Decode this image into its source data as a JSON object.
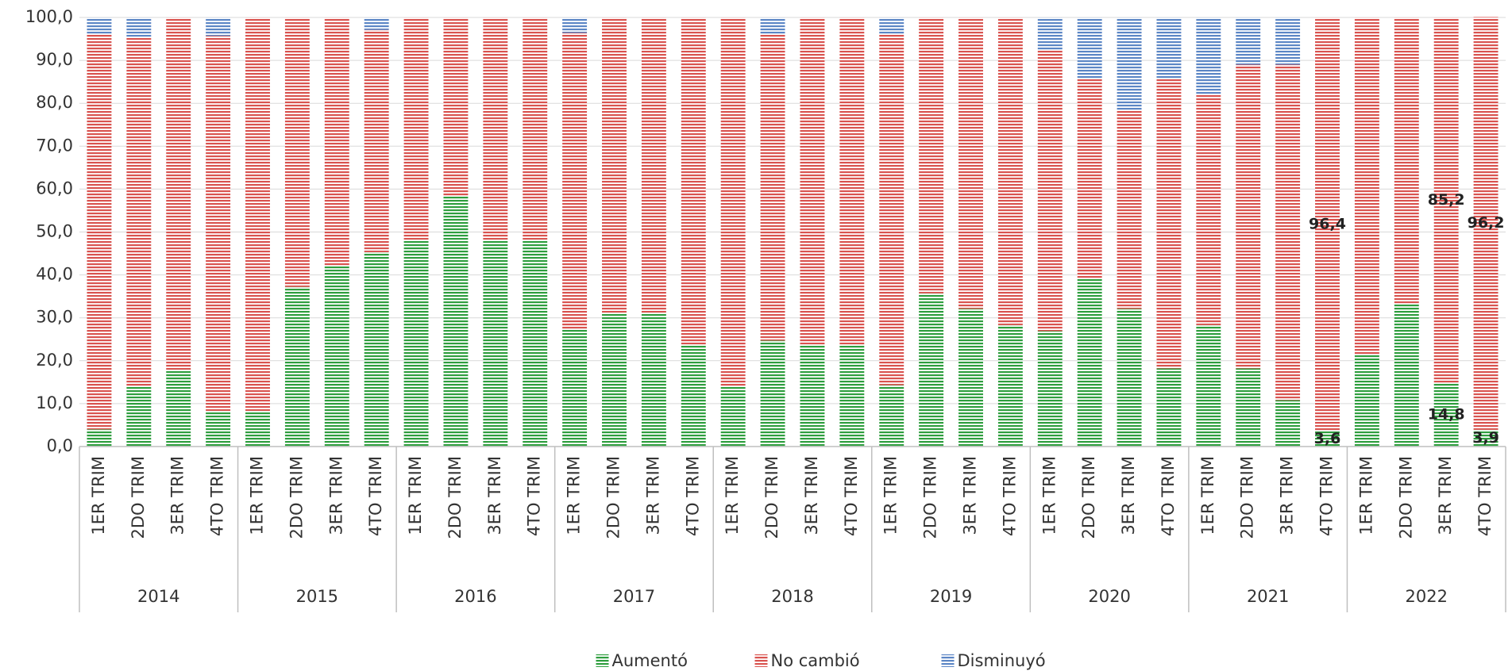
{
  "chart_data": {
    "type": "stacked_bar",
    "categories": [
      "1ER TRIM",
      "2DO TRIM",
      "3ER TRIM",
      "4TO TRIM",
      "1ER TRIM",
      "2DO TRIM",
      "3ER TRIM",
      "4TO TRIM",
      "1ER TRIM",
      "2DO TRIM",
      "3ER TRIM",
      "4TO TRIM",
      "1ER TRIM",
      "2DO TRIM",
      "3ER TRIM",
      "4TO TRIM",
      "1ER TRIM",
      "2DO TRIM",
      "3ER TRIM",
      "4TO TRIM",
      "1ER TRIM",
      "2DO TRIM",
      "3ER TRIM",
      "4TO TRIM",
      "1ER TRIM",
      "2DO TRIM",
      "3ER TRIM",
      "4TO TRIM",
      "1ER TRIM",
      "2DO TRIM",
      "3ER TRIM",
      "4TO TRIM",
      "1ER TRIM",
      "2DO TRIM",
      "3ER TRIM",
      "4TO TRIM"
    ],
    "groups": [
      "2014",
      "2015",
      "2016",
      "2017",
      "2018",
      "2019",
      "2020",
      "2021",
      "2022"
    ],
    "series": [
      {
        "name": "Aumentó",
        "color": "#2e9e3e",
        "values": [
          4.0,
          13.9,
          17.9,
          8.3,
          8.3,
          37.2,
          42.2,
          45.3,
          48.2,
          58.5,
          48.2,
          48.2,
          27.4,
          31.2,
          31.2,
          23.8,
          13.9,
          24.7,
          23.8,
          23.8,
          14.3,
          35.7,
          32.1,
          28.3,
          26.9,
          39.2,
          32.1,
          18.2,
          28.3,
          18.2,
          10.8,
          3.6,
          21.3,
          33.2,
          14.8,
          3.9
        ],
        "value_labels": [
          null,
          null,
          null,
          null,
          null,
          null,
          null,
          null,
          null,
          null,
          null,
          null,
          null,
          null,
          null,
          null,
          null,
          null,
          null,
          null,
          null,
          null,
          null,
          null,
          null,
          null,
          null,
          null,
          null,
          null,
          null,
          "3,6",
          null,
          null,
          "14,8",
          "3,9"
        ]
      },
      {
        "name": "No cambió",
        "color": "#d9534f",
        "values": [
          92.2,
          81.6,
          82.1,
          87.4,
          91.7,
          62.8,
          57.8,
          51.8,
          51.8,
          41.5,
          51.8,
          51.8,
          69.0,
          68.8,
          68.8,
          76.2,
          86.1,
          71.5,
          76.2,
          76.2,
          81.9,
          64.3,
          67.9,
          71.7,
          65.5,
          46.5,
          46.2,
          67.5,
          53.8,
          70.8,
          78.2,
          96.4,
          78.7,
          66.8,
          85.2,
          96.2
        ],
        "value_labels": [
          null,
          null,
          null,
          null,
          null,
          null,
          null,
          null,
          null,
          null,
          null,
          null,
          null,
          null,
          null,
          null,
          null,
          null,
          null,
          null,
          null,
          null,
          null,
          null,
          null,
          null,
          null,
          null,
          null,
          null,
          null,
          "96,4",
          null,
          null,
          "85,2",
          "96,2"
        ]
      },
      {
        "name": "Disminuyó",
        "color": "#5b86c5",
        "values": [
          3.8,
          4.5,
          0,
          4.3,
          0,
          0,
          0,
          2.9,
          0,
          0,
          0,
          0,
          3.6,
          0,
          0,
          0,
          0,
          3.8,
          0,
          0,
          3.8,
          0,
          0,
          0,
          7.6,
          14.3,
          21.7,
          14.3,
          17.9,
          11.0,
          11.0,
          0,
          0,
          0,
          0,
          0
        ]
      }
    ],
    "ylim": [
      0,
      100
    ],
    "yticks": [
      {
        "value": 0,
        "label": "0,0"
      },
      {
        "value": 10,
        "label": "10,0"
      },
      {
        "value": 20,
        "label": "20,0"
      },
      {
        "value": 30,
        "label": "30,0"
      },
      {
        "value": 40,
        "label": "40,0"
      },
      {
        "value": 50,
        "label": "50,0"
      },
      {
        "value": 60,
        "label": "60,0"
      },
      {
        "value": 70,
        "label": "70,0"
      },
      {
        "value": 80,
        "label": "80,0"
      },
      {
        "value": 90,
        "label": "90,0"
      },
      {
        "value": 100,
        "label": "100,0"
      }
    ],
    "grid": true,
    "legend": "bottom"
  }
}
